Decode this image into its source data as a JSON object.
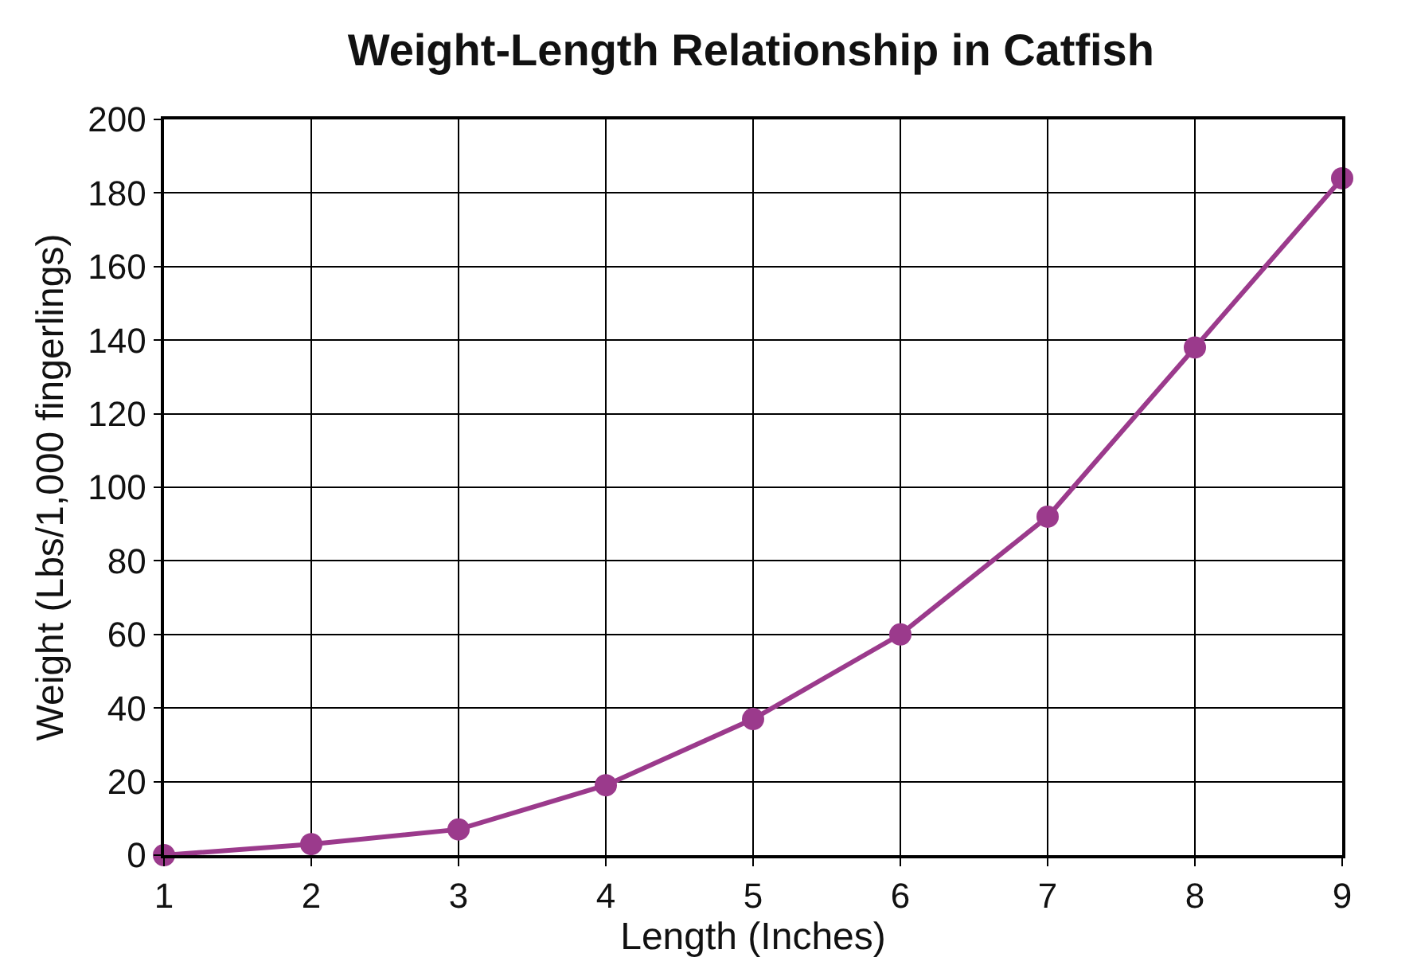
{
  "chart_data": {
    "type": "line",
    "title": "Weight-Length Relationship in Catfish",
    "xlabel": "Length (Inches)",
    "ylabel": "Weight (Lbs/1,000 fingerlings)",
    "x": [
      1,
      2,
      3,
      4,
      5,
      6,
      7,
      8,
      9
    ],
    "series": [
      {
        "color": "#9b3a8c",
        "values": [
          0,
          3,
          7,
          19,
          37,
          60,
          92,
          138,
          184
        ]
      }
    ],
    "xlim": [
      1,
      9
    ],
    "xticks": [
      1,
      2,
      3,
      4,
      5,
      6,
      7,
      8,
      9
    ],
    "ylim": [
      0,
      200
    ],
    "yticks": [
      0,
      20,
      40,
      60,
      80,
      100,
      120,
      140,
      160,
      180,
      200
    ],
    "grid": true,
    "legend": false,
    "marker": "circle",
    "line_style": "solid"
  }
}
